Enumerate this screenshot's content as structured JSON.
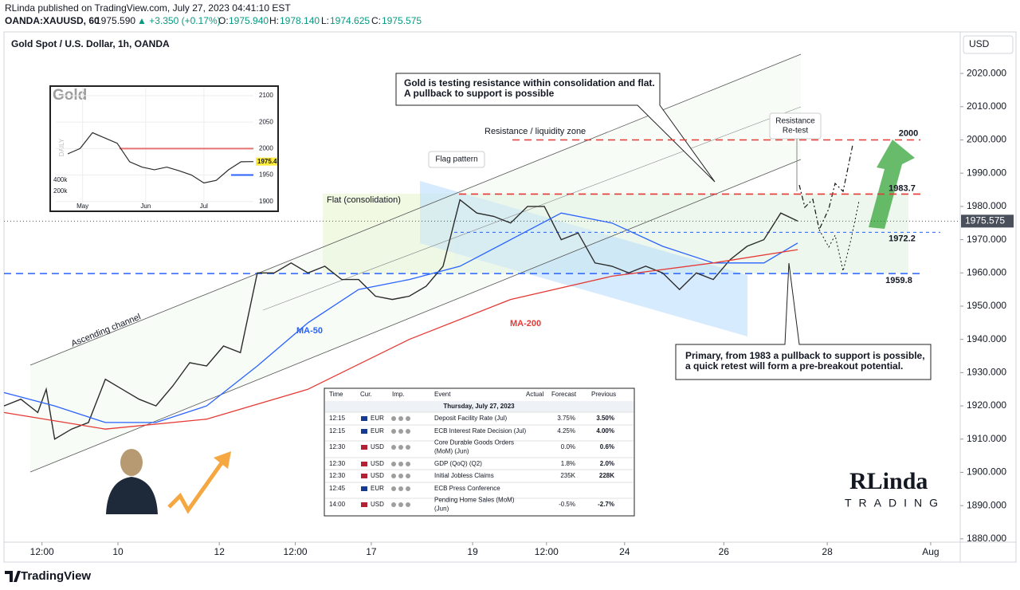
{
  "header": {
    "author": "RLinda published on TradingView.com, July 27, 2023 04:41:10 EST",
    "symbol": "OANDA:XAUUSD, 60",
    "price": "1975.590",
    "change": "▲ +3.350 (+0.17%)",
    "open_label": "O:",
    "open": "1975.940",
    "high_label": "H:",
    "high": "1978.140",
    "low_label": "L:",
    "low": "1974.625",
    "close_label": "C:",
    "close": "1975.575"
  },
  "chart_data": {
    "type": "line",
    "title": "Gold Spot / U.S. Dollar, 1h, OANDA",
    "currency": "USD",
    "xlim": [
      0,
      453
    ],
    "xticks": [
      {
        "value": 18,
        "label": "12:00"
      },
      {
        "value": 54,
        "label": "10"
      },
      {
        "value": 102,
        "label": "12"
      },
      {
        "value": 138,
        "label": "12:00"
      },
      {
        "value": 174,
        "label": "17"
      },
      {
        "value": 222,
        "label": "19"
      },
      {
        "value": 257,
        "label": "12:00"
      },
      {
        "value": 294,
        "label": "24"
      },
      {
        "value": 341,
        "label": "26"
      },
      {
        "value": 390,
        "label": "28"
      },
      {
        "value": 439,
        "label": "Aug"
      }
    ],
    "ylim": [
      1879,
      2032.5
    ],
    "yticks": [
      {
        "value": 1880,
        "label": "1880.000"
      },
      {
        "value": 1890,
        "label": "1890.000"
      },
      {
        "value": 1900,
        "label": "1900.000"
      },
      {
        "value": 1910,
        "label": "1910.000"
      },
      {
        "value": 1920,
        "label": "1920.000"
      },
      {
        "value": 1930,
        "label": "1930.000"
      },
      {
        "value": 1940,
        "label": "1940.000"
      },
      {
        "value": 1950,
        "label": "1950.000"
      },
      {
        "value": 1960,
        "label": "1960.000"
      },
      {
        "value": 1970,
        "label": "1970.000"
      },
      {
        "value": 1980,
        "label": "1980.000"
      },
      {
        "value": 1990,
        "label": "1990.000"
      },
      {
        "value": 2000,
        "label": "2000.000"
      },
      {
        "value": 2010,
        "label": "2010.000"
      },
      {
        "value": 2020,
        "label": "2020.000"
      }
    ],
    "last_price": 1975.575,
    "series": [
      {
        "color": "#2b2b2b",
        "x": [
          0,
          8,
          16,
          20,
          24,
          32,
          40,
          48,
          56,
          64,
          72,
          80,
          88,
          96,
          104,
          112,
          120,
          128,
          136,
          144,
          152,
          160,
          168,
          176,
          184,
          192,
          200,
          208,
          216,
          224,
          232,
          240,
          248,
          256,
          264,
          272,
          280,
          288,
          296,
          304,
          312,
          320,
          328,
          336,
          344,
          352,
          360,
          368,
          376
        ],
        "values": [
          1920,
          1922,
          1918,
          1925,
          1910,
          1913,
          1915,
          1928,
          1925,
          1922,
          1920,
          1926,
          1933,
          1932,
          1938,
          1936,
          1960,
          1960,
          1963,
          1960,
          1962,
          1958,
          1958,
          1953,
          1952,
          1953,
          1956,
          1962,
          1982,
          1978,
          1977,
          1975,
          1980,
          1980,
          1970,
          1972,
          1963,
          1962,
          1960,
          1962,
          1960,
          1955,
          1960,
          1958,
          1964,
          1968,
          1970,
          1978,
          1975.6
        ]
      },
      {
        "name": "MA-50",
        "color": "#2962ff",
        "x": [
          0,
          24,
          48,
          72,
          96,
          120,
          144,
          168,
          192,
          216,
          240,
          264,
          288,
          312,
          336,
          360,
          376
        ],
        "values": [
          1924,
          1920,
          1915,
          1915,
          1920,
          1932,
          1945,
          1955,
          1958,
          1962,
          1970,
          1978,
          1975,
          1968,
          1963,
          1963,
          1969
        ]
      },
      {
        "name": "MA-200",
        "color": "#e53935",
        "x": [
          0,
          48,
          96,
          144,
          192,
          240,
          288,
          336,
          376
        ],
        "values": [
          1918,
          1913,
          1916,
          1925,
          1940,
          1952,
          1959,
          1963,
          1967
        ]
      }
    ],
    "levels": [
      {
        "value": 2000,
        "color": "#e53935"
      },
      {
        "value": 1983.7,
        "color": "#e53935"
      },
      {
        "value": 1972.2,
        "color": "#2962ff"
      },
      {
        "value": 1959.8,
        "color": "#2962ff"
      }
    ],
    "annotations": {
      "flat": "Flat (consolidation)",
      "flag": "Flag pattern",
      "resistance_zone": "Resistance / liquidity zone",
      "retest": [
        "Resistance",
        "Re-test"
      ],
      "channel": "Ascending channel",
      "callout_top": [
        "Gold is testing resistance within consolidation and flat.",
        "A pullback to support is possible"
      ],
      "callout_bottom": [
        "Primary, from 1983 a pullback to support is possible,",
        "a quick retest will form a pre-breakout potential."
      ]
    },
    "inset": {
      "title": "Gold",
      "timeframe": "DAILY",
      "xlim": [
        0,
        15
      ],
      "xticks": [
        {
          "value": 1.2,
          "label": "May"
        },
        {
          "value": 6.3,
          "label": "Jun"
        },
        {
          "value": 11,
          "label": "Jul"
        }
      ],
      "ylim": [
        1886,
        2115
      ],
      "yticks": [
        1900,
        1950,
        2000,
        2050,
        2100
      ],
      "x": [
        0,
        1,
        2,
        3,
        4,
        5,
        6,
        7,
        8,
        9,
        10,
        11,
        12,
        13,
        14,
        15
      ],
      "values": [
        1990,
        2000,
        2030,
        2020,
        2010,
        1975,
        1965,
        1960,
        1965,
        1958,
        1950,
        1935,
        1940,
        1960,
        1975,
        1975.4
      ],
      "color": "#2b2b2b",
      "levels": [
        {
          "value": 2000,
          "color": "#e57373"
        },
        {
          "value": 1950,
          "color": "#2962ff"
        }
      ],
      "last_price": 1975.4,
      "vol_ylim": [
        0,
        557000
      ],
      "vol_ticks": [
        {
          "value": 400000,
          "label": "400k"
        },
        {
          "value": 200000,
          "label": "200k"
        }
      ]
    }
  },
  "calendar": {
    "columns": [
      "Time",
      "Cur.",
      "Imp.",
      "Event",
      "Actual",
      "Forecast",
      "Previous"
    ],
    "date": "Thursday, July 27, 2023",
    "rows": [
      {
        "time": "12:15",
        "cur": "EUR",
        "event": [
          "Deposit Facility Rate (Jul)"
        ],
        "forecast": "3.75%",
        "previous": "3.50%"
      },
      {
        "time": "12:15",
        "cur": "EUR",
        "event": [
          "ECB Interest Rate Decision (Jul)"
        ],
        "forecast": "4.25%",
        "previous": "4.00%"
      },
      {
        "time": "12:30",
        "cur": "USD",
        "event": [
          "Core Durable Goods Orders",
          "(MoM) (Jun)"
        ],
        "forecast": "0.0%",
        "previous": "0.6%"
      },
      {
        "time": "12:30",
        "cur": "USD",
        "event": [
          "GDP (QoQ) (Q2)"
        ],
        "forecast": "1.8%",
        "previous": "2.0%"
      },
      {
        "time": "12:30",
        "cur": "USD",
        "event": [
          "Initial Jobless Claims"
        ],
        "forecast": "235K",
        "previous": "228K"
      },
      {
        "time": "12:45",
        "cur": "EUR",
        "event": [
          "ECB Press Conference"
        ]
      },
      {
        "time": "14:00",
        "cur": "USD",
        "event": [
          "Pending Home Sales (MoM)",
          "(Jun)"
        ],
        "forecast": "-0.5%",
        "previous": "-2.7%"
      }
    ]
  },
  "logo": {
    "line1": "RLinda",
    "line2": "TRADING"
  },
  "footer": {
    "brand": "TradingView"
  }
}
